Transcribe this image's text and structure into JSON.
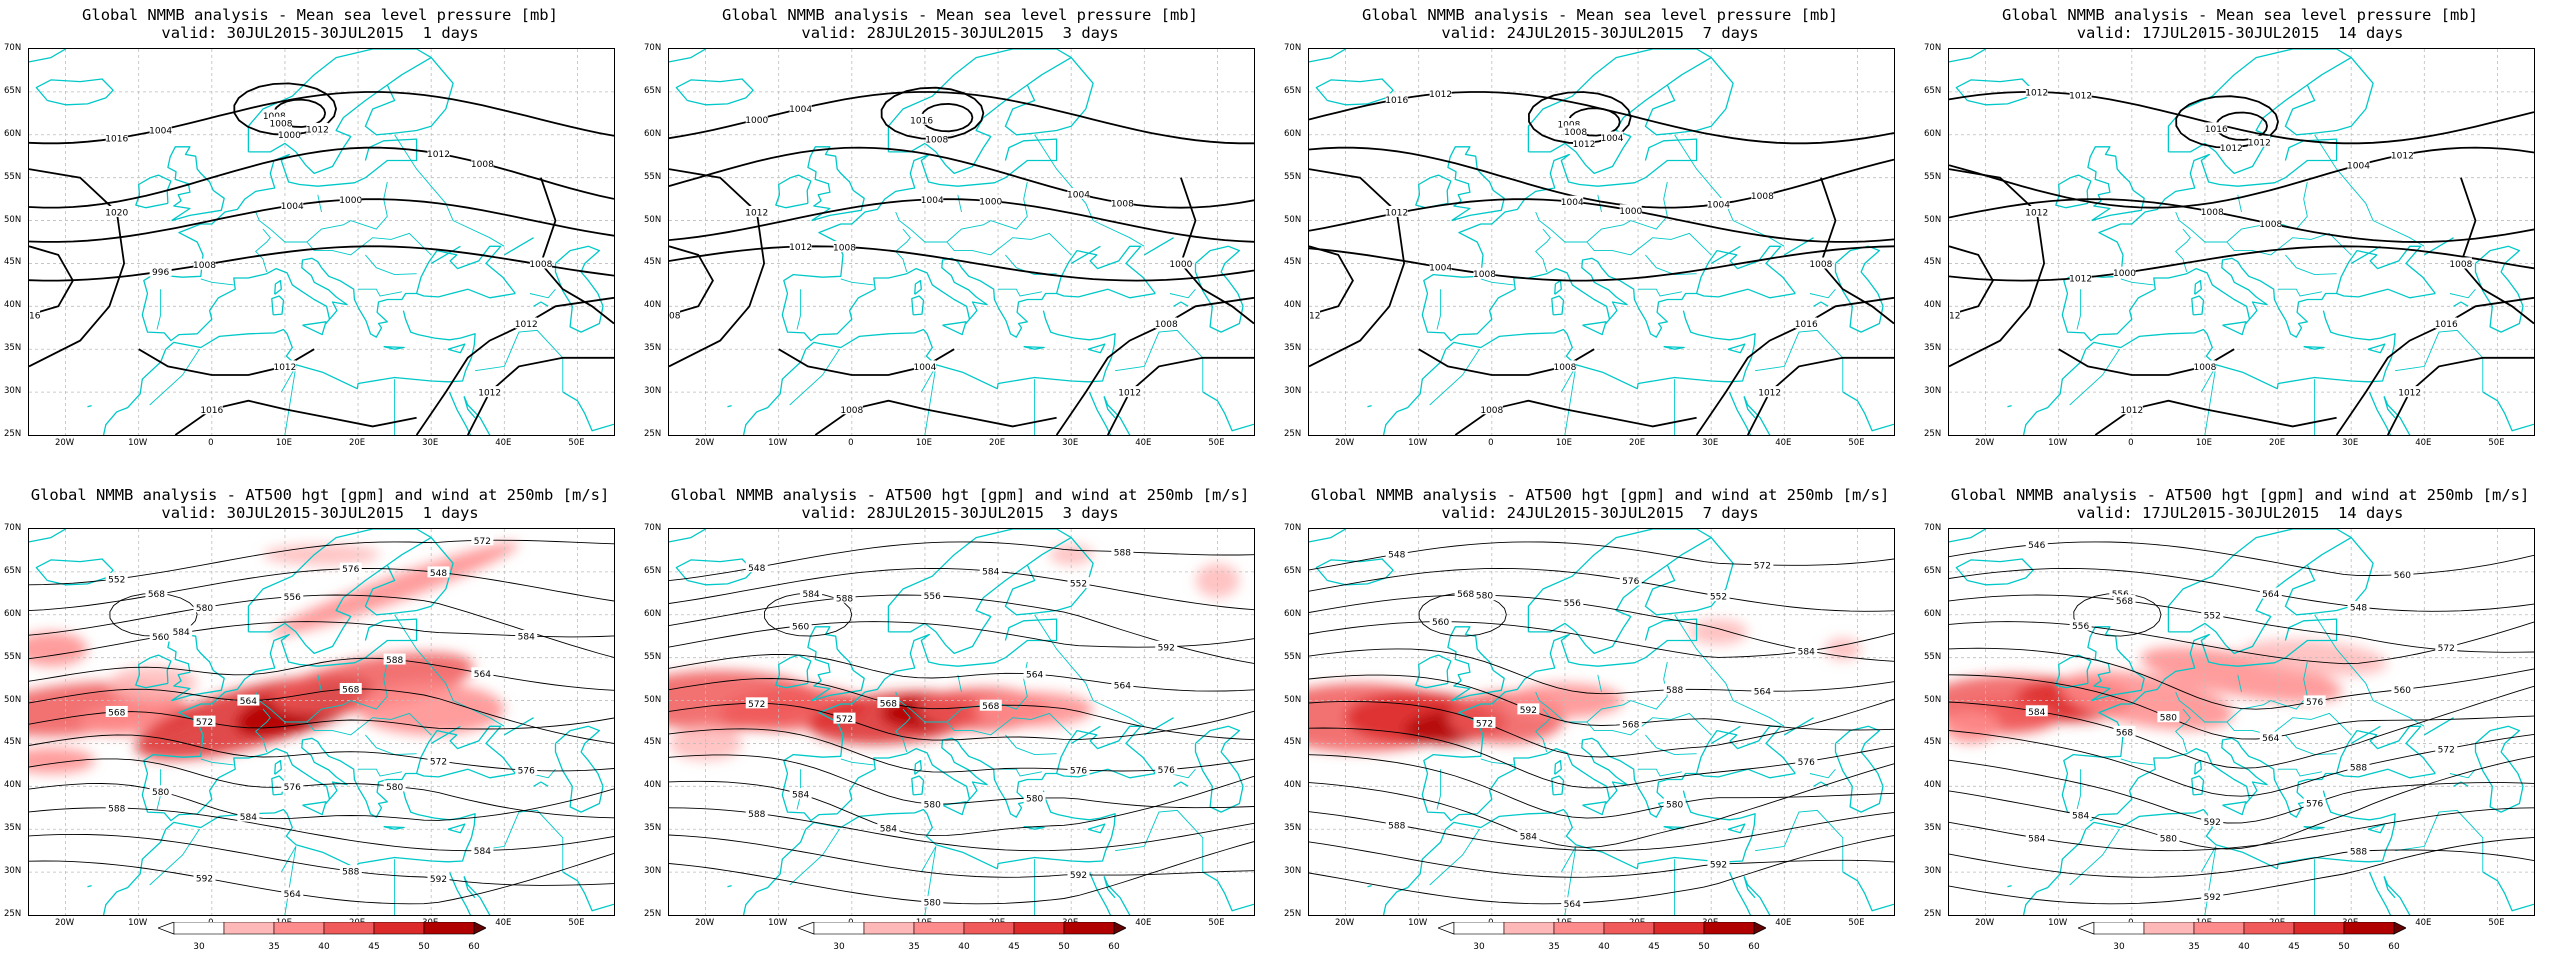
{
  "rows": [
    {
      "kind": "mslp",
      "panels": [
        {
          "title": "Global NMMB analysis - Mean sea level pressure [mb]",
          "valid": "valid: 30JUL2015-30JUL2015  1 days",
          "labels": [
            "1016",
            "1012",
            "1004",
            "996",
            "1000",
            "1008",
            "1020",
            "1016",
            "1012",
            "1012",
            "1016",
            "1012",
            "1008",
            "1004",
            "1008",
            "1000",
            "1008",
            "1012",
            "1008"
          ]
        },
        {
          "title": "Global NMMB analysis - Mean sea level pressure [mb]",
          "valid": "valid: 28JUL2015-30JUL2015  3 days",
          "labels": [
            "1000",
            "1004",
            "1004",
            "1012",
            "1008",
            "1016",
            "1012",
            "1008",
            "1008",
            "1012",
            "1008",
            "1004",
            "1000",
            "1004",
            "1008",
            "1000",
            "1008"
          ]
        },
        {
          "title": "Global NMMB analysis - Mean sea level pressure [mb]",
          "valid": "valid: 24JUL2015-30JUL2015  7 days",
          "labels": [
            "1016",
            "1004",
            "1004",
            "1004",
            "1012",
            "1008",
            "1012",
            "1012",
            "1016",
            "1012",
            "1008",
            "1008",
            "1008",
            "1012",
            "1008",
            "1000",
            "1008",
            "1004",
            "1008"
          ]
        },
        {
          "title": "Global NMMB analysis - Mean sea level pressure [mb]",
          "valid": "valid: 17JUL2015-30JUL2015  14 days",
          "labels": [
            "1012",
            "1004",
            "1008",
            "1012",
            "1012",
            "1016",
            "1012",
            "1012",
            "1016",
            "1012",
            "1012",
            "1008",
            "1008",
            "1012",
            "1012",
            "1008",
            "1000",
            "1012"
          ]
        }
      ]
    },
    {
      "kind": "z500",
      "panels": [
        {
          "title": "Global NMMB analysis - AT500 hgt [gpm] and wind at 250mb [m/s]",
          "valid": "valid: 30JUL2015-30JUL2015  1 days",
          "labels": [
            "552",
            "548",
            "556",
            "560",
            "564",
            "568",
            "572",
            "576",
            "580",
            "584",
            "588",
            "592",
            "564",
            "568",
            "572",
            "576",
            "580",
            "584",
            "588",
            "564",
            "568",
            "572",
            "576",
            "580",
            "584",
            "588",
            "592",
            "584"
          ]
        },
        {
          "title": "Global NMMB analysis - AT500 hgt [gpm] and wind at 250mb [m/s]",
          "valid": "valid: 28JUL2015-30JUL2015  3 days",
          "labels": [
            "548",
            "552",
            "556",
            "560",
            "564",
            "568",
            "572",
            "576",
            "580",
            "584",
            "588",
            "592",
            "580",
            "584",
            "588",
            "584",
            "588",
            "592",
            "564",
            "568",
            "572",
            "576",
            "580",
            "584"
          ]
        },
        {
          "title": "Global NMMB analysis - AT500 hgt [gpm] and wind at 250mb [m/s]",
          "valid": "valid: 24JUL2015-30JUL2015  7 days",
          "labels": [
            "548",
            "552",
            "556",
            "560",
            "564",
            "568",
            "572",
            "576",
            "580",
            "584",
            "588",
            "592",
            "564",
            "568",
            "572",
            "576",
            "580",
            "584",
            "588",
            "592"
          ]
        },
        {
          "title": "Global NMMB analysis - AT500 hgt [gpm] and wind at 250mb [m/s]",
          "valid": "valid: 17JUL2015-30JUL2015  14 days",
          "labels": [
            "546",
            "548",
            "552",
            "556",
            "560",
            "564",
            "568",
            "572",
            "576",
            "580",
            "584",
            "588",
            "592",
            "556",
            "560",
            "564",
            "568",
            "572",
            "576",
            "580",
            "584",
            "588",
            "592",
            "584"
          ]
        }
      ]
    }
  ],
  "axes": {
    "lat_ticks": [
      "70N",
      "65N",
      "60N",
      "55N",
      "50N",
      "45N",
      "40N",
      "35N",
      "30N",
      "25N"
    ],
    "lon_ticks": [
      "20W",
      "10W",
      "0",
      "10E",
      "20E",
      "30E",
      "40E",
      "50E"
    ]
  },
  "colorbar": {
    "ticks": [
      "30",
      "35",
      "40",
      "45",
      "50",
      "60"
    ],
    "colors": [
      "#ffe4e1",
      "#ffb8b8",
      "#ff8c8c",
      "#f05a5a",
      "#dc2a2a",
      "#b00000",
      "#6a0000"
    ]
  },
  "colors": {
    "coast": "#00c8c8",
    "contour": "#000000",
    "jet": "#e02020"
  }
}
